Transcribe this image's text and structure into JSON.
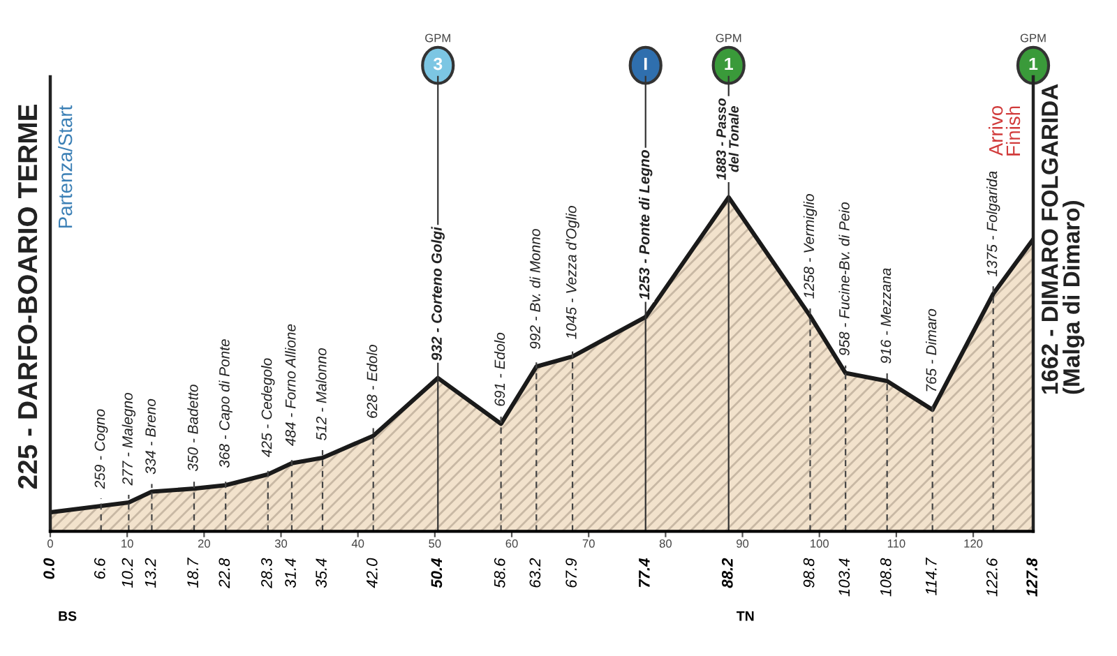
{
  "chart_data": {
    "type": "area",
    "x": [
      0,
      6.6,
      10.2,
      13.2,
      18.7,
      22.8,
      28.3,
      31.4,
      35.4,
      42.0,
      50.4,
      58.6,
      63.2,
      67.9,
      77.4,
      88.2,
      98.8,
      103.4,
      108.8,
      114.7,
      122.6,
      127.8
    ],
    "series": [
      {
        "color": "#f2e2cc",
        "values": [
          225,
          259,
          277,
          334,
          350,
          368,
          425,
          484,
          512,
          628,
          932,
          691,
          992,
          1045,
          1253,
          1883,
          1258,
          958,
          916,
          765,
          1375,
          1662
        ],
        "value_labels": [
          "225 - DARFO-BOARIO TERME",
          "259 - Cogno",
          "277 - Malegno",
          "334 - Breno",
          "350 - Badetto",
          "368 - Capo di Ponte",
          "425 - Cedegolo",
          "484 - Forno Allione",
          "512 - Malonno",
          "628 - Edolo",
          "932 - Corteno Golgi",
          "691 - Edolo",
          "992 - Bv. di Monno",
          "1045 - Vezza d'Oglio",
          "1253 - Ponte di Legno",
          "1883 - Passo\ndel Tonale",
          "1258 - Vermiglio",
          "958 - Fucine-Bv. di Peio",
          "916 - Mezzana",
          "765 - Dimaro",
          "1375 - Folgarida",
          "1662 - DIMARO FOLGARIDA\n(Malga di Dimaro)"
        ]
      }
    ],
    "xlim": [
      0,
      127.8
    ],
    "xticks": [
      0,
      10,
      20,
      30,
      40,
      50,
      60,
      70,
      80,
      90,
      100,
      110,
      120
    ],
    "x2lim": [
      0,
      127.8
    ],
    "x2ticks": [
      {
        "value": 0,
        "label": "0.0"
      },
      6.6,
      10.2,
      13.2,
      18.7,
      22.8,
      28.3,
      31.4,
      35.4,
      {
        "value": 42,
        "label": "42.0"
      },
      50.4,
      58.6,
      63.2,
      67.9,
      77.4,
      88.2,
      98.8,
      103.4,
      108.8,
      114.7,
      122.6,
      127.8
    ],
    "tick_labels": "x",
    "grid": "x",
    "annotations": [
      "Partenza/Start",
      "Arrivo\nFinish",
      "GPM",
      "3",
      "I",
      "GPM",
      "1",
      "GPM",
      "1",
      "BS",
      "TN"
    ]
  }
}
